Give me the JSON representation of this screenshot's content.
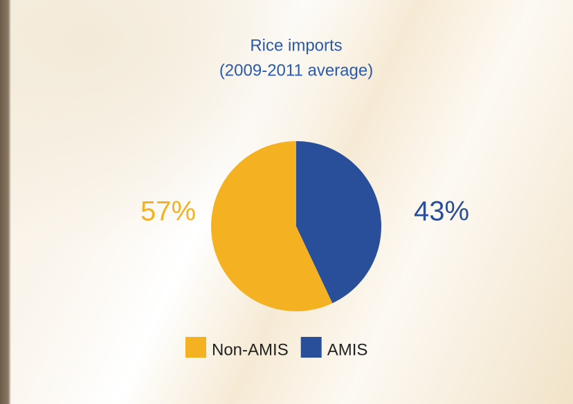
{
  "chart_data": {
    "type": "pie",
    "title": "Rice imports",
    "subtitle": "(2009-2011 average)",
    "categories": [
      "Non-AMIS",
      "AMIS"
    ],
    "values": [
      57,
      43
    ],
    "value_labels": [
      "57%",
      "43%"
    ],
    "colors": [
      "#f4b223",
      "#2a4f9a"
    ]
  }
}
